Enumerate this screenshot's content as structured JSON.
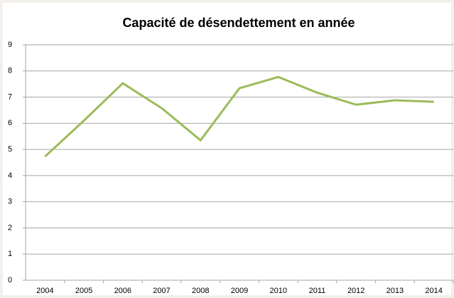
{
  "chart_data": {
    "type": "line",
    "title": "Capacité de désendettement en année",
    "categories": [
      "2004",
      "2005",
      "2006",
      "2007",
      "2008",
      "2009",
      "2010",
      "2011",
      "2012",
      "2013",
      "2014"
    ],
    "series": [
      {
        "color": "#9bbb59",
        "values": [
          4.73,
          6.1,
          7.53,
          6.58,
          5.35,
          7.34,
          7.77,
          7.17,
          6.71,
          6.88,
          6.82
        ]
      }
    ],
    "ylim": [
      0,
      9
    ],
    "yticks": [
      0,
      1,
      2,
      3,
      4,
      5,
      6,
      7,
      8,
      9
    ],
    "grid": true
  }
}
